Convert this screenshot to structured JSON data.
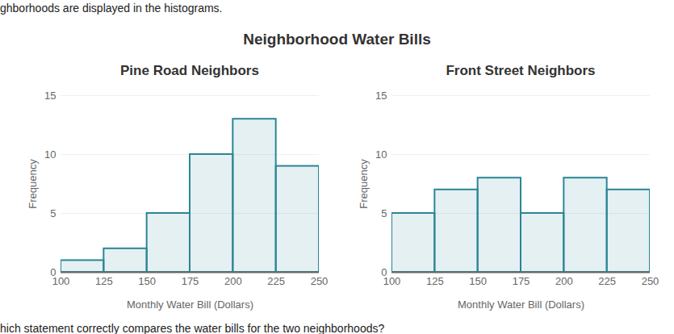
{
  "intro": "ghborhoods are displayed in the histograms.",
  "title": "Neighborhood Water Bills",
  "question": "hich statement correctly compares the water bills for the two neighborhoods?",
  "chart_data": [
    {
      "type": "histogram",
      "title": "Pine Road Neighbors",
      "bins": [
        100,
        125,
        150,
        175,
        200,
        225,
        250
      ],
      "values": [
        1,
        2,
        5,
        10,
        13,
        9
      ],
      "color": "#2a8696",
      "x_label": "Monthly Water Bill (Dollars)",
      "y_label": "Frequency",
      "xlim": [
        100,
        250
      ],
      "xticks": [
        100,
        125,
        150,
        175,
        200,
        225,
        250
      ],
      "ylim": [
        0,
        15
      ],
      "yticks": [
        0,
        5,
        10,
        15
      ],
      "grid": true
    },
    {
      "type": "histogram",
      "title": "Front Street Neighbors",
      "bins": [
        100,
        125,
        150,
        175,
        200,
        225,
        250
      ],
      "values": [
        5,
        7,
        8,
        5,
        8,
        7
      ],
      "color": "#2a8696",
      "x_label": "Monthly Water Bill (Dollars)",
      "y_label": "Frequency",
      "xlim": [
        100,
        250
      ],
      "xticks": [
        100,
        125,
        150,
        175,
        200,
        225,
        250
      ],
      "ylim": [
        0,
        15
      ],
      "yticks": [
        0,
        5,
        10,
        15
      ],
      "grid": true
    }
  ]
}
